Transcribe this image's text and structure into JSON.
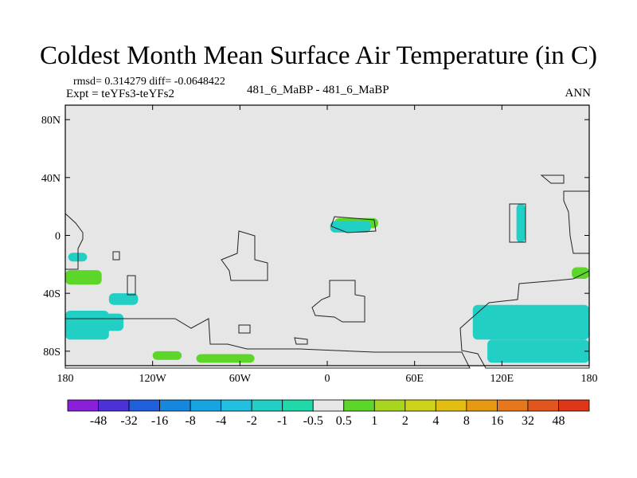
{
  "title": "Coldest Month Mean Surface Air Temperature (in C)",
  "stats": "rmsd= 0.314279 diff= -0.0648422",
  "expt": "Expt = teYFs3-teYFs2",
  "center_label": "481_6_MaBP - 481_6_MaBP",
  "season": "ANN",
  "chart_data": {
    "type": "heatmap",
    "subtype": "global difference map (cylindrical equidistant)",
    "x_range": [
      -180,
      180
    ],
    "y_range": [
      -90,
      90
    ],
    "x_ticks": [
      {
        "value": -180,
        "label": "180"
      },
      {
        "value": -120,
        "label": "120W"
      },
      {
        "value": -60,
        "label": "60W"
      },
      {
        "value": 0,
        "label": "0"
      },
      {
        "value": 60,
        "label": "60E"
      },
      {
        "value": 120,
        "label": "120E"
      },
      {
        "value": 180,
        "label": "180"
      }
    ],
    "y_ticks": [
      {
        "value": 80,
        "label": "80N"
      },
      {
        "value": 40,
        "label": "40N"
      },
      {
        "value": 0,
        "label": "0"
      },
      {
        "value": -40,
        "label": "40S"
      },
      {
        "value": -80,
        "label": "80S"
      }
    ],
    "colorbar": {
      "levels": [
        "-48",
        "-32",
        "-16",
        "-8",
        "-4",
        "-2",
        "-1",
        "-0.5",
        "0.5",
        "1",
        "2",
        "4",
        "8",
        "16",
        "32",
        "48"
      ],
      "colors": [
        "#8b1ed8",
        "#4d30d8",
        "#1f5fdc",
        "#1488de",
        "#17a5e2",
        "#21bfe0",
        "#22cfc4",
        "#1fd9a8",
        "#e6e6e6",
        "#5dd62a",
        "#a8d61e",
        "#cfd21a",
        "#e3be12",
        "#e69a12",
        "#e6781b",
        "#e2561e",
        "#e03618"
      ]
    },
    "regions": [
      {
        "name": "south-pacific-west",
        "value": "-1",
        "color": "#22cfc4",
        "lon": [
          -180,
          -150
        ],
        "lat": [
          -72,
          -52
        ]
      },
      {
        "name": "south-pacific-west-2",
        "value": "-1",
        "color": "#22cfc4",
        "lon": [
          -180,
          -140
        ],
        "lat": [
          -66,
          -54
        ]
      },
      {
        "name": "pacific-island-warm",
        "value": "1",
        "color": "#5dd62a",
        "lon": [
          -180,
          -155
        ],
        "lat": [
          -34,
          -24
        ]
      },
      {
        "name": "pacific-cold-small",
        "value": "-1",
        "color": "#22cfc4",
        "lon": [
          -178,
          -165
        ],
        "lat": [
          -18,
          -12
        ]
      },
      {
        "name": "pacific-cold-small-2",
        "value": "-1",
        "color": "#22cfc4",
        "lon": [
          -150,
          -130
        ],
        "lat": [
          -48,
          -40
        ]
      },
      {
        "name": "antarctic-warm-1",
        "value": "1",
        "color": "#5dd62a",
        "lon": [
          -120,
          -100
        ],
        "lat": [
          -86,
          -80
        ]
      },
      {
        "name": "antarctic-warm-2",
        "value": "1",
        "color": "#5dd62a",
        "lon": [
          -90,
          -50
        ],
        "lat": [
          -88,
          -82
        ]
      },
      {
        "name": "africa-warm",
        "value": "1",
        "color": "#5dd62a",
        "lon": [
          5,
          35
        ],
        "lat": [
          5,
          12
        ]
      },
      {
        "name": "africa-cold",
        "value": "-1",
        "color": "#22cfc4",
        "lon": [
          2,
          30
        ],
        "lat": [
          2,
          10
        ]
      },
      {
        "name": "asia-column",
        "value": "-1",
        "color": "#22cfc4",
        "lon": [
          130,
          136
        ],
        "lat": [
          -5,
          22
        ]
      },
      {
        "name": "southern-ocean-east",
        "value": "-1",
        "color": "#22cfc4",
        "lon": [
          100,
          180
        ],
        "lat": [
          -72,
          -48
        ]
      },
      {
        "name": "southern-ocean-east-2",
        "value": "-1",
        "color": "#22cfc4",
        "lon": [
          110,
          180
        ],
        "lat": [
          -88,
          -72
        ]
      },
      {
        "name": "australia-warm",
        "value": "1",
        "color": "#5dd62a",
        "lon": [
          168,
          180
        ],
        "lat": [
          -30,
          -22
        ]
      }
    ]
  }
}
